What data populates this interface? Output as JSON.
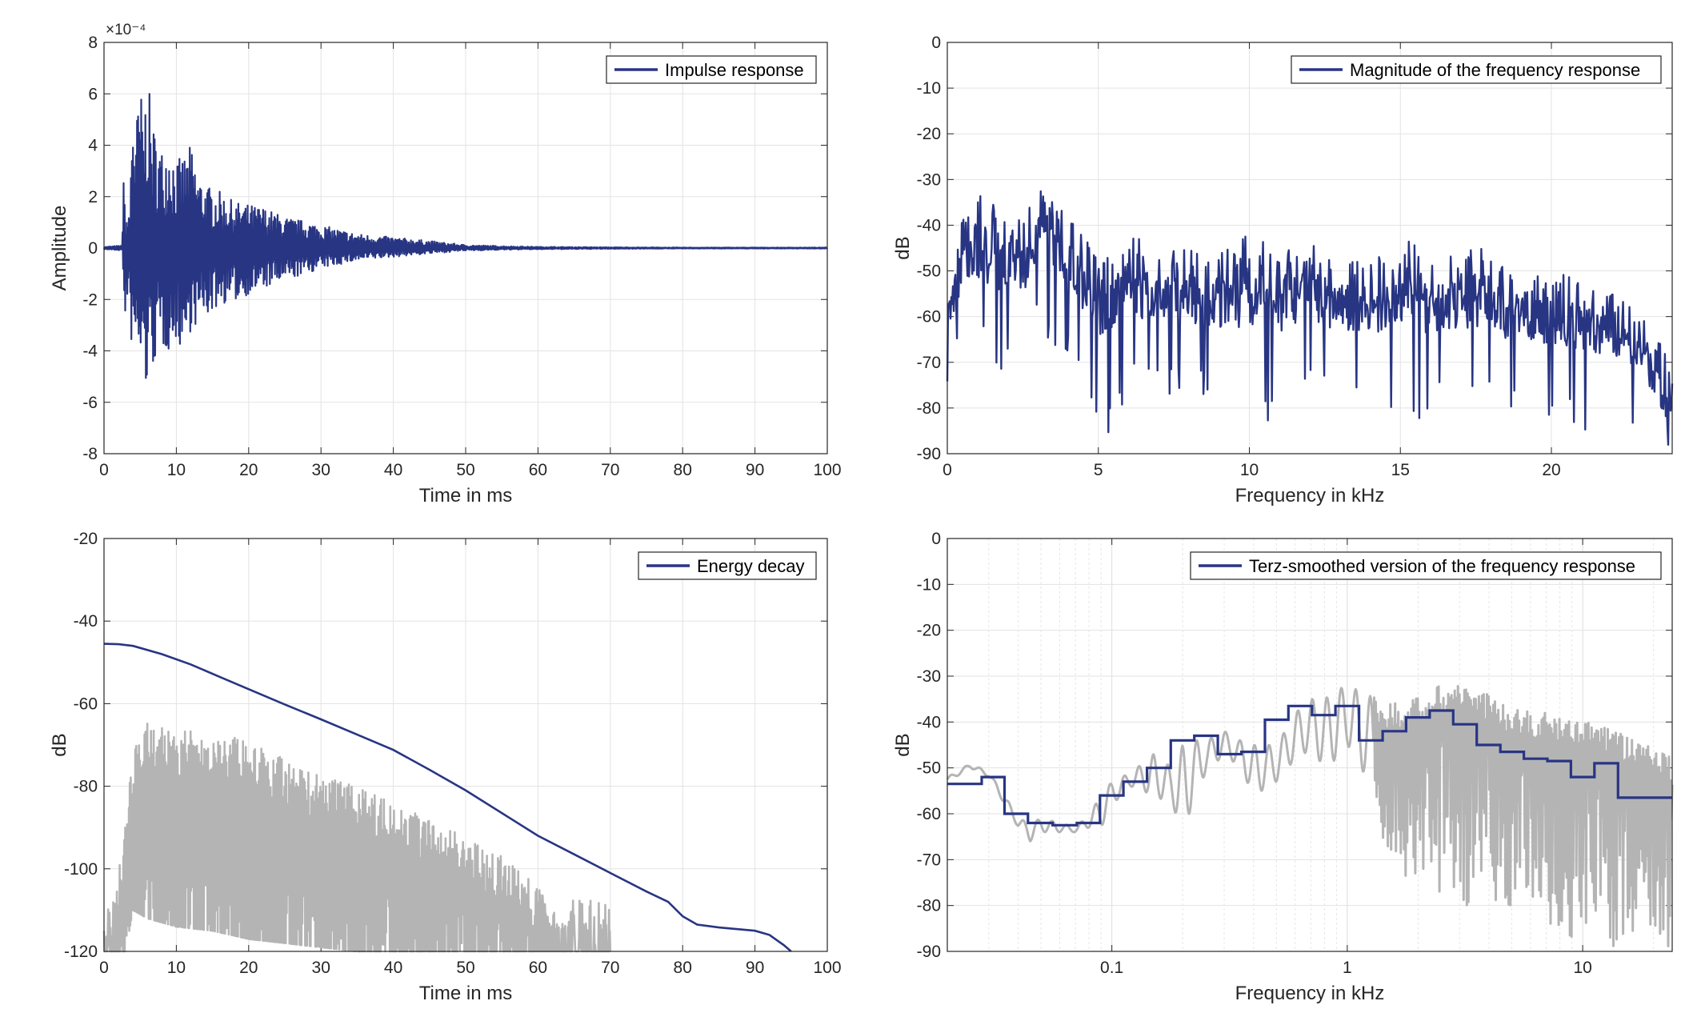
{
  "colors": {
    "series": "#283583",
    "reference": "#b4b4b4",
    "grid": "#e3e3e3",
    "axis": "#262626"
  },
  "chart_data": [
    {
      "type": "line",
      "id": "impulse",
      "xlabel": "Time in ms",
      "ylabel": "Amplitude",
      "xlim": [
        0,
        100
      ],
      "ylim": [
        -8,
        8
      ],
      "xticks": [
        0,
        10,
        20,
        30,
        40,
        50,
        60,
        70,
        80,
        90,
        100
      ],
      "yticks": [
        -8,
        -6,
        -4,
        -2,
        0,
        2,
        4,
        6,
        8
      ],
      "xtick_labels": [
        "0",
        "10",
        "20",
        "30",
        "40",
        "50",
        "60",
        "70",
        "80",
        "90",
        "100"
      ],
      "ytick_labels": [
        "-8",
        "-6",
        "-4",
        "-2",
        "0",
        "2",
        "4",
        "6",
        "8"
      ],
      "exponent_label": "×10⁻⁴",
      "grid": true,
      "legend": {
        "entries": [
          "Impulse response"
        ],
        "placement": "top-right"
      },
      "series": [
        {
          "name": "Impulse response",
          "x": [
            0,
            2.5,
            2.7,
            3.0,
            3.5,
            4.0,
            4.3,
            5.0,
            5.5,
            6.0,
            6.4,
            7.0,
            8.0,
            9.0,
            10.0,
            11.0,
            12.0,
            13.0,
            14.0,
            15.0,
            16.0,
            18.0,
            20.0,
            22.0,
            25.0,
            28.0,
            30.0,
            35.0,
            40.0,
            45.0,
            50.0,
            55.0,
            60.0,
            70.0,
            80.0,
            90.0,
            100.0
          ],
          "y_max": [
            0.05,
            0.1,
            2.7,
            1.5,
            1.2,
            6.7,
            4.6,
            6.4,
            5.1,
            7.3,
            5.5,
            4.6,
            3.9,
            4.3,
            3.4,
            3.6,
            4.0,
            2.9,
            2.5,
            2.3,
            2.2,
            1.8,
            1.7,
            1.6,
            1.2,
            1.05,
            0.9,
            0.55,
            0.42,
            0.28,
            0.12,
            0.08,
            0.05,
            0.03,
            0.02,
            0.02,
            0.02
          ],
          "y_min": [
            -0.05,
            -0.1,
            -2.2,
            -2.8,
            -2.6,
            -4.6,
            -4.2,
            -4.6,
            -5.3,
            -5.7,
            -4.9,
            -4.5,
            -4.0,
            -4.0,
            -3.6,
            -4.1,
            -3.2,
            -3.0,
            -2.7,
            -2.5,
            -2.2,
            -2.1,
            -1.8,
            -1.6,
            -1.3,
            -1.0,
            -0.8,
            -0.5,
            -0.35,
            -0.22,
            -0.1,
            -0.07,
            -0.05,
            -0.03,
            -0.02,
            -0.02,
            -0.02
          ]
        }
      ]
    },
    {
      "type": "line",
      "id": "magnitude",
      "xlabel": "Frequency in kHz",
      "ylabel": "dB",
      "xlim": [
        0,
        24
      ],
      "ylim": [
        -90,
        0
      ],
      "xticks": [
        0,
        5,
        10,
        15,
        20
      ],
      "yticks": [
        0,
        -10,
        -20,
        -30,
        -40,
        -50,
        -60,
        -70,
        -80,
        -90
      ],
      "xtick_labels": [
        "0",
        "5",
        "10",
        "15",
        "20"
      ],
      "ytick_labels": [
        "0",
        "-10",
        "-20",
        "-30",
        "-40",
        "-50",
        "-60",
        "-70",
        "-80",
        "-90"
      ],
      "grid": true,
      "legend": {
        "entries": [
          "Magnitude of the frequency response"
        ],
        "placement": "top-right"
      },
      "series": [
        {
          "name": "Magnitude of the frequency response",
          "x": [
            0,
            0.5,
            1,
            1.5,
            2,
            2.5,
            3,
            3.5,
            4,
            4.5,
            5,
            6,
            7,
            8,
            9,
            10,
            11,
            12,
            13,
            14,
            15,
            16,
            17,
            18,
            19,
            20,
            21,
            22,
            23,
            24
          ],
          "y_upper": [
            -55,
            -38,
            -33,
            -35,
            -40,
            -38,
            -31,
            -34,
            -36,
            -42,
            -48,
            -42,
            -44,
            -45,
            -44,
            -42,
            -45,
            -44,
            -47,
            -48,
            -41,
            -48,
            -44,
            -45,
            -53,
            -49,
            -52,
            -55,
            -59,
            -70
          ],
          "y_lower": [
            -78,
            -64,
            -66,
            -74,
            -70,
            -68,
            -62,
            -66,
            -70,
            -76,
            -92,
            -76,
            -78,
            -78,
            -80,
            -92,
            -80,
            -78,
            -80,
            -82,
            -88,
            -80,
            -80,
            -82,
            -82,
            -84,
            -86,
            -88,
            -90,
            -90
          ],
          "y_center": [
            -60,
            -48,
            -44,
            -47,
            -50,
            -48,
            -42,
            -44,
            -46,
            -52,
            -58,
            -53,
            -54,
            -55,
            -55,
            -55,
            -56,
            -54,
            -57,
            -58,
            -53,
            -58,
            -55,
            -56,
            -61,
            -59,
            -62,
            -63,
            -67,
            -80
          ]
        }
      ]
    },
    {
      "type": "line",
      "id": "energy",
      "xlabel": "Time in ms",
      "ylabel": "dB",
      "xlim": [
        0,
        100
      ],
      "ylim": [
        -120,
        -20
      ],
      "xticks": [
        0,
        10,
        20,
        30,
        40,
        50,
        60,
        70,
        80,
        90,
        100
      ],
      "yticks": [
        -120,
        -100,
        -80,
        -60,
        -40,
        -20
      ],
      "xtick_labels": [
        "0",
        "10",
        "20",
        "30",
        "40",
        "50",
        "60",
        "70",
        "80",
        "90",
        "100"
      ],
      "ytick_labels": [
        "-120",
        "-100",
        "-80",
        "-60",
        "-40",
        "-20"
      ],
      "grid": true,
      "legend": {
        "entries": [
          "Energy decay"
        ],
        "placement": "top-right"
      },
      "series": [
        {
          "name": "Energy decay",
          "x": [
            0,
            2,
            4,
            8,
            12,
            16,
            20,
            25,
            30,
            35,
            40,
            45,
            50,
            55,
            60,
            65,
            70,
            75,
            78,
            80,
            82,
            85,
            90,
            92,
            94,
            95
          ],
          "y": [
            -45.5,
            -45.6,
            -46.0,
            -48.0,
            -50.5,
            -53.5,
            -56.5,
            -60.2,
            -63.8,
            -67.5,
            -71.2,
            -76.0,
            -81.0,
            -86.5,
            -92.0,
            -96.5,
            -101.0,
            -105.5,
            -108.0,
            -111.5,
            -113.5,
            -114.2,
            -115.0,
            -116.0,
            -118.5,
            -120.0
          ]
        },
        {
          "name": "",
          "x": [
            0,
            2,
            3,
            4,
            6,
            8,
            10,
            15,
            20,
            25,
            30,
            35,
            40,
            45,
            50,
            55,
            60,
            65,
            70
          ],
          "y_upper": [
            -115,
            -102,
            -82,
            -72,
            -64,
            -65,
            -66,
            -67,
            -69,
            -73,
            -77,
            -80,
            -84,
            -88,
            -92,
            -97,
            -104,
            -110,
            -118
          ],
          "y_lower": [
            -120,
            -120,
            -120,
            -110,
            -112,
            -113,
            -114,
            -115,
            -117,
            -118,
            -119,
            -120,
            -120,
            -120,
            -120,
            -120,
            -120,
            -120,
            -120
          ]
        }
      ]
    },
    {
      "type": "line",
      "id": "terz",
      "xlabel": "Frequency in kHz",
      "ylabel": "dB",
      "xscale": "log",
      "xlim": [
        0.02,
        24
      ],
      "ylim": [
        -90,
        0
      ],
      "xticks": [
        0.1,
        1,
        10
      ],
      "yticks": [
        0,
        -10,
        -20,
        -30,
        -40,
        -50,
        -60,
        -70,
        -80,
        -90
      ],
      "xtick_labels": [
        "0.1",
        "1",
        "10"
      ],
      "ytick_labels": [
        "0",
        "-10",
        "-20",
        "-30",
        "-40",
        "-50",
        "-60",
        "-70",
        "-80",
        "-90"
      ],
      "grid": true,
      "legend": {
        "entries": [
          "Terz-smoothed version of the frequency response"
        ],
        "placement": "top-right"
      },
      "series": [
        {
          "name": "Terz-smoothed version of the frequency response",
          "band_edges": [
            0.02,
            0.028,
            0.035,
            0.044,
            0.056,
            0.071,
            0.089,
            0.112,
            0.141,
            0.178,
            0.224,
            0.282,
            0.355,
            0.447,
            0.562,
            0.708,
            0.891,
            1.122,
            1.413,
            1.778,
            2.239,
            2.818,
            3.548,
            4.467,
            5.623,
            7.079,
            8.913,
            11.22,
            14.13,
            17.78,
            24
          ],
          "levels": [
            -53.5,
            -52.0,
            -60.0,
            -62.0,
            -62.5,
            -62.0,
            -56.0,
            -53.0,
            -50.0,
            -44.0,
            -43.0,
            -47.0,
            -46.5,
            -39.5,
            -36.5,
            -38.5,
            -36.5,
            -44.0,
            -42.0,
            -39.0,
            -37.5,
            -40.5,
            -45.0,
            -46.5,
            -48.0,
            -48.5,
            -52.0,
            -49.0,
            -56.5,
            -56.5
          ]
        },
        {
          "name": "",
          "x": [
            0.02,
            0.025,
            0.03,
            0.035,
            0.04,
            0.045,
            0.05,
            0.06,
            0.07,
            0.08,
            0.09,
            0.1,
            0.12,
            0.15,
            0.18,
            0.2,
            0.22,
            0.25,
            0.3,
            0.35,
            0.4,
            0.5,
            0.6,
            0.7,
            0.8,
            0.9,
            1.0,
            1.2,
            1.5,
            2.0,
            2.5,
            3.0,
            4.0,
            5.0,
            7.0,
            10.0,
            15.0,
            20.0,
            24.0
          ],
          "y_upper": [
            -52,
            -49,
            -51,
            -56,
            -61,
            -62,
            -61,
            -62,
            -63,
            -60,
            -56,
            -53,
            -51,
            -47,
            -50,
            -45,
            -44,
            -44,
            -42,
            -44,
            -45,
            -45,
            -38,
            -35,
            -35,
            -33,
            -32,
            -34,
            -36,
            -34,
            -32,
            -31,
            -34,
            -37,
            -38,
            -39,
            -43,
            -45,
            -48
          ],
          "y_lower": [
            -53,
            -50,
            -52,
            -58,
            -63,
            -66,
            -64,
            -64,
            -64,
            -63,
            -63,
            -58,
            -54,
            -56,
            -58,
            -64,
            -58,
            -51,
            -47,
            -50,
            -56,
            -53,
            -48,
            -46,
            -50,
            -48,
            -45,
            -52,
            -72,
            -75,
            -78,
            -82,
            -80,
            -80,
            -85,
            -88,
            -90,
            -90,
            -90
          ]
        }
      ]
    }
  ]
}
